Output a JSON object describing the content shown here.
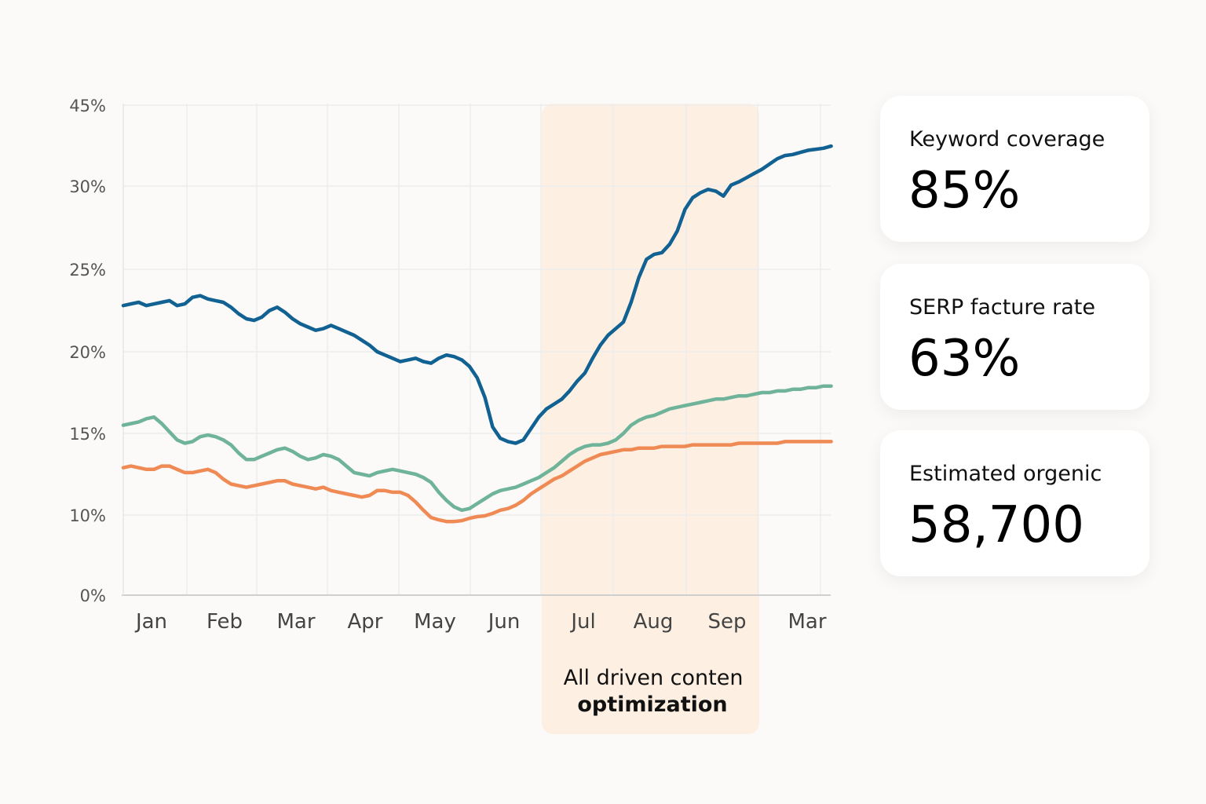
{
  "chart_data": {
    "type": "line",
    "x_ticks": [
      "Jan",
      "Feb",
      "Mar",
      "Apr",
      "May",
      "Jun",
      "Jul",
      "Aug",
      "Sep",
      "Mar"
    ],
    "y_ticks": [
      "0%",
      "10%",
      "15%",
      "20%",
      "25%",
      "30%",
      "45%"
    ],
    "grid": true,
    "highlight": {
      "label_line1": "All driven conten",
      "label_line2": "optimization",
      "color": "#fdf0e2"
    },
    "series": [
      {
        "color": "#116193",
        "x": [
          0.0,
          0.1,
          0.2,
          0.3,
          0.4,
          0.5,
          0.6,
          0.7,
          0.8,
          0.9,
          1.0,
          1.1,
          1.2,
          1.3,
          1.4,
          1.5,
          1.6,
          1.7,
          1.8,
          1.9,
          2.0,
          2.1,
          2.2,
          2.3,
          2.4,
          2.5,
          2.6,
          2.7,
          2.8,
          2.9,
          3.0,
          3.1,
          3.2,
          3.3,
          3.4,
          3.5,
          3.6,
          3.7,
          3.8,
          3.9,
          4.0,
          4.1,
          4.2,
          4.3,
          4.4,
          4.5,
          4.6,
          4.7,
          4.8,
          4.9,
          5.0,
          5.1,
          5.2,
          5.3,
          5.4,
          5.5,
          5.6,
          5.7,
          5.8,
          5.9,
          6.0,
          6.1,
          6.2,
          6.3,
          6.4,
          6.5,
          6.6,
          6.7,
          6.8,
          6.9,
          7.0,
          7.1,
          7.2,
          7.3,
          7.4,
          7.5,
          7.6,
          7.7,
          7.8,
          7.9,
          8.0,
          8.1,
          8.2,
          8.3,
          8.4,
          8.5,
          8.6,
          8.7,
          8.8,
          8.9,
          9.0,
          9.1,
          9.2
        ],
        "y": [
          22.8,
          22.9,
          23.0,
          22.8,
          22.9,
          23.0,
          23.1,
          22.8,
          22.9,
          23.3,
          23.4,
          23.2,
          23.1,
          23.0,
          22.7,
          22.3,
          22.0,
          21.9,
          22.1,
          22.5,
          22.7,
          22.4,
          22.0,
          21.7,
          21.5,
          21.3,
          21.4,
          21.6,
          21.4,
          21.2,
          21.0,
          20.7,
          20.4,
          20.0,
          19.8,
          19.6,
          19.4,
          19.5,
          19.6,
          19.4,
          19.3,
          19.6,
          19.8,
          19.7,
          19.5,
          19.1,
          18.4,
          17.2,
          15.4,
          14.7,
          14.5,
          14.4,
          14.6,
          15.3,
          16.0,
          16.5,
          16.8,
          17.1,
          17.6,
          18.2,
          18.7,
          19.6,
          20.4,
          21.0,
          21.4,
          21.8,
          23.0,
          24.5,
          25.6,
          25.9,
          26.0,
          26.5,
          27.3,
          28.6,
          29.3,
          29.6,
          29.8,
          29.7,
          29.4,
          30.1,
          30.4,
          30.8,
          31.2,
          31.6,
          32.1,
          32.6,
          32.9,
          33.0,
          33.2,
          33.4,
          33.5,
          33.6,
          33.8
        ]
      },
      {
        "color": "#6fb49a",
        "x": [
          0.0,
          0.1,
          0.2,
          0.3,
          0.4,
          0.5,
          0.6,
          0.7,
          0.8,
          0.9,
          1.0,
          1.1,
          1.2,
          1.3,
          1.4,
          1.5,
          1.6,
          1.7,
          1.8,
          1.9,
          2.0,
          2.1,
          2.2,
          2.3,
          2.4,
          2.5,
          2.6,
          2.7,
          2.8,
          2.9,
          3.0,
          3.1,
          3.2,
          3.3,
          3.4,
          3.5,
          3.6,
          3.7,
          3.8,
          3.9,
          4.0,
          4.1,
          4.2,
          4.3,
          4.4,
          4.5,
          4.6,
          4.7,
          4.8,
          4.9,
          5.0,
          5.1,
          5.2,
          5.3,
          5.4,
          5.5,
          5.6,
          5.7,
          5.8,
          5.9,
          6.0,
          6.1,
          6.2,
          6.3,
          6.4,
          6.5,
          6.6,
          6.7,
          6.8,
          6.9,
          7.0,
          7.1,
          7.2,
          7.3,
          7.4,
          7.5,
          7.6,
          7.7,
          7.8,
          7.9,
          8.0,
          8.1,
          8.2,
          8.3,
          8.4,
          8.5,
          8.6,
          8.7,
          8.8,
          8.9,
          9.0,
          9.1,
          9.2
        ],
        "y": [
          15.5,
          15.6,
          15.7,
          15.9,
          16.0,
          15.6,
          15.1,
          14.6,
          14.4,
          14.5,
          14.8,
          14.9,
          14.8,
          14.6,
          14.3,
          13.8,
          13.4,
          13.4,
          13.6,
          13.8,
          14.0,
          14.1,
          13.9,
          13.6,
          13.4,
          13.5,
          13.7,
          13.6,
          13.4,
          13.0,
          12.6,
          12.5,
          12.4,
          12.6,
          12.7,
          12.8,
          12.7,
          12.6,
          12.5,
          12.3,
          12.0,
          11.4,
          10.9,
          10.5,
          10.3,
          10.4,
          10.7,
          11.0,
          11.3,
          11.5,
          11.6,
          11.7,
          11.9,
          12.1,
          12.3,
          12.6,
          12.9,
          13.3,
          13.7,
          14.0,
          14.2,
          14.3,
          14.3,
          14.4,
          14.6,
          15.0,
          15.5,
          15.8,
          16.0,
          16.1,
          16.3,
          16.5,
          16.6,
          16.7,
          16.8,
          16.9,
          17.0,
          17.1,
          17.1,
          17.2,
          17.3,
          17.3,
          17.4,
          17.5,
          17.5,
          17.6,
          17.6,
          17.7,
          17.7,
          17.8,
          17.8,
          17.9,
          17.9
        ]
      },
      {
        "color": "#f08a55",
        "x": [
          0.0,
          0.1,
          0.2,
          0.3,
          0.4,
          0.5,
          0.6,
          0.7,
          0.8,
          0.9,
          1.0,
          1.1,
          1.2,
          1.3,
          1.4,
          1.5,
          1.6,
          1.7,
          1.8,
          1.9,
          2.0,
          2.1,
          2.2,
          2.3,
          2.4,
          2.5,
          2.6,
          2.7,
          2.8,
          2.9,
          3.0,
          3.1,
          3.2,
          3.3,
          3.4,
          3.5,
          3.6,
          3.7,
          3.8,
          3.9,
          4.0,
          4.1,
          4.2,
          4.3,
          4.4,
          4.5,
          4.6,
          4.7,
          4.8,
          4.9,
          5.0,
          5.1,
          5.2,
          5.3,
          5.4,
          5.5,
          5.6,
          5.7,
          5.8,
          5.9,
          6.0,
          6.1,
          6.2,
          6.3,
          6.4,
          6.5,
          6.6,
          6.7,
          6.8,
          6.9,
          7.0,
          7.1,
          7.2,
          7.3,
          7.4,
          7.5,
          7.6,
          7.7,
          7.8,
          7.9,
          8.0,
          8.1,
          8.2,
          8.3,
          8.4,
          8.5,
          8.6,
          8.7,
          8.8,
          8.9,
          9.0,
          9.1,
          9.2
        ],
        "y": [
          12.9,
          13.0,
          12.9,
          12.8,
          12.8,
          13.0,
          13.0,
          12.8,
          12.6,
          12.6,
          12.7,
          12.8,
          12.6,
          12.2,
          11.9,
          11.8,
          11.7,
          11.8,
          11.9,
          12.0,
          12.1,
          12.1,
          11.9,
          11.8,
          11.7,
          11.6,
          11.7,
          11.5,
          11.4,
          11.3,
          11.2,
          11.1,
          11.2,
          11.5,
          11.5,
          11.4,
          11.4,
          11.2,
          10.8,
          10.3,
          9.7,
          9.4,
          9.2,
          9.2,
          9.3,
          9.6,
          9.8,
          9.9,
          10.1,
          10.3,
          10.4,
          10.6,
          10.9,
          11.3,
          11.6,
          11.9,
          12.2,
          12.4,
          12.7,
          13.0,
          13.3,
          13.5,
          13.7,
          13.8,
          13.9,
          14.0,
          14.0,
          14.1,
          14.1,
          14.1,
          14.2,
          14.2,
          14.2,
          14.2,
          14.3,
          14.3,
          14.3,
          14.3,
          14.3,
          14.3,
          14.4,
          14.4,
          14.4,
          14.4,
          14.4,
          14.4,
          14.5,
          14.5,
          14.5,
          14.5,
          14.5,
          14.5,
          14.5
        ]
      }
    ]
  },
  "cards": [
    {
      "label": "Keyword coverage",
      "value": "85%"
    },
    {
      "label": "SERP facture rate",
      "value": "63%"
    },
    {
      "label": "Estimated orgenic",
      "value": "58,700"
    }
  ]
}
